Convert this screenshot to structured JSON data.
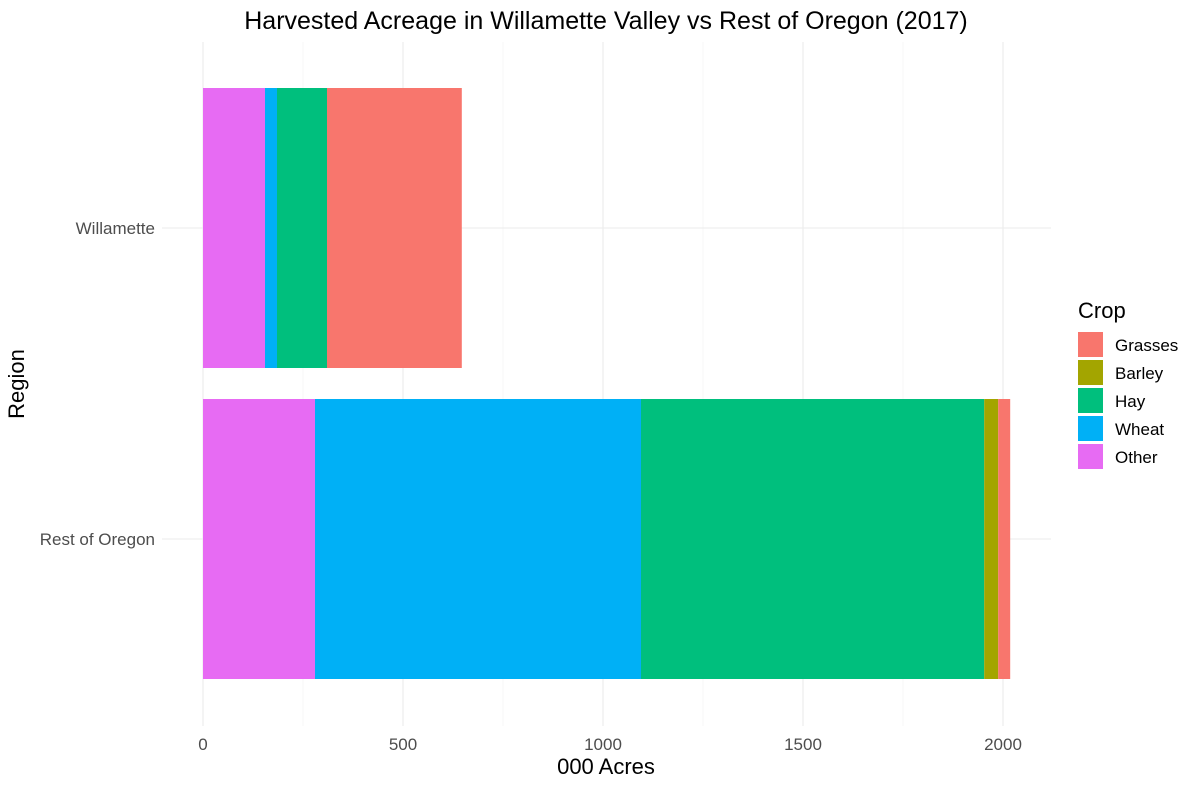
{
  "chart_data": {
    "type": "bar",
    "orientation": "horizontal",
    "stacked": true,
    "title": "Harvested Acreage in Willamette Valley vs Rest of Oregon (2017)",
    "xlabel": "000 Acres",
    "ylabel": "Region",
    "categories": [
      "Willamette",
      "Rest of Oregon"
    ],
    "xlim": [
      0,
      2120
    ],
    "xticks": [
      0,
      500,
      1000,
      1500,
      2000
    ],
    "grid": true,
    "legend": {
      "title": "Crop",
      "position": "right",
      "order": [
        "Grasses",
        "Barley",
        "Hay",
        "Wheat",
        "Other"
      ]
    },
    "stack_order": [
      "Other",
      "Wheat",
      "Hay",
      "Barley",
      "Grasses"
    ],
    "series": [
      {
        "name": "Other",
        "color": "#E76BF3",
        "values": [
          155,
          280
        ]
      },
      {
        "name": "Wheat",
        "color": "#00B0F6",
        "values": [
          30,
          815
        ]
      },
      {
        "name": "Hay",
        "color": "#00BF7D",
        "values": [
          125,
          858
        ]
      },
      {
        "name": "Barley",
        "color": "#A3A500",
        "values": [
          0,
          35
        ]
      },
      {
        "name": "Grasses",
        "color": "#F8766D",
        "values": [
          337,
          30
        ]
      }
    ]
  }
}
